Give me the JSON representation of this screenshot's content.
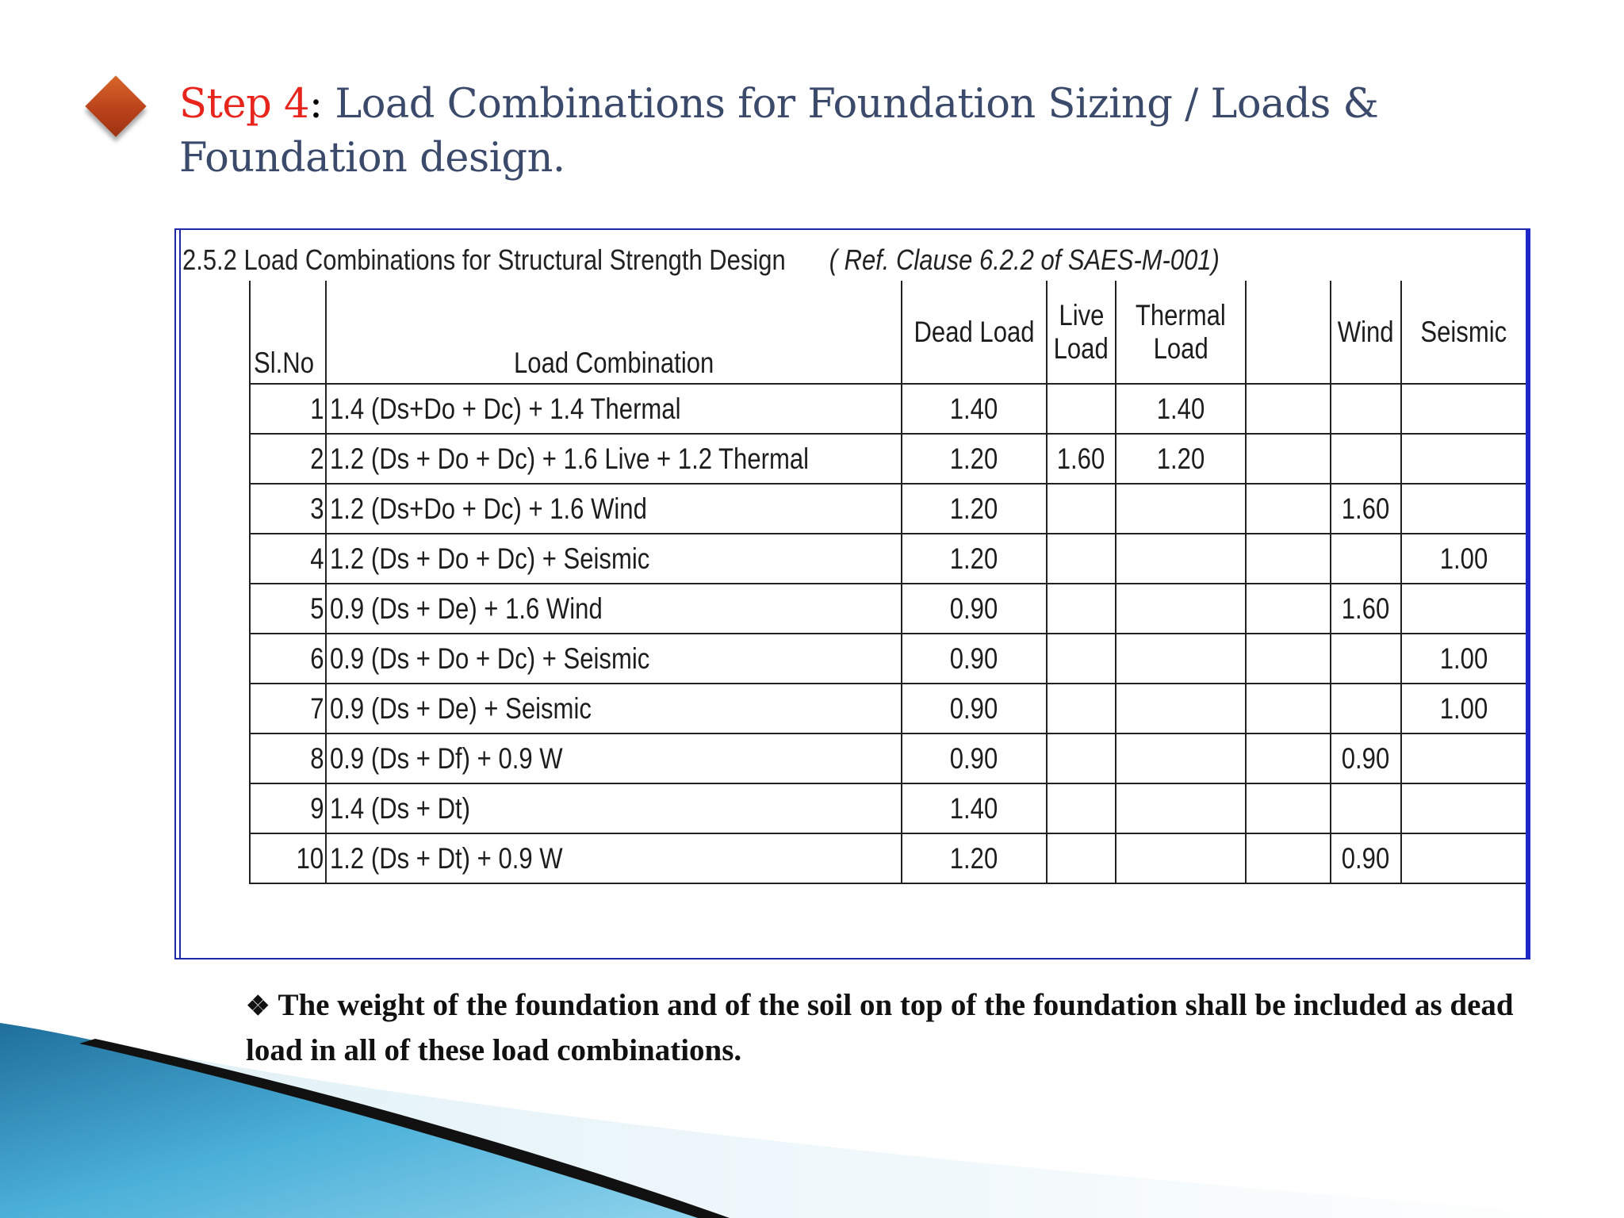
{
  "slide": {
    "title_step": "Step 4",
    "title_colon": ":",
    "title_text": " Load Combinations for Foundation Sizing / Loads & Foundation design."
  },
  "panel": {
    "heading": "2.5.2 Load Combinations for Structural Strength Design",
    "reference": "( Ref. Clause 6.2.2 of SAES-M-001)"
  },
  "table": {
    "headers": {
      "sl_no": "Sl.No",
      "combination": "Load Combination",
      "dead": "Dead Load",
      "live": [
        "Live",
        "Load"
      ],
      "thermal": [
        "Thermal",
        "Load"
      ],
      "blank": "",
      "wind": "Wind",
      "seismic": "Seismic"
    },
    "rows": [
      {
        "sl": "1",
        "combination": "1.4 (Ds+Do + Dc) + 1.4 Thermal",
        "dead": "1.40",
        "live": "",
        "thermal": "1.40",
        "blank": "",
        "wind": "",
        "seismic": ""
      },
      {
        "sl": "2",
        "combination": "1.2 (Ds + Do + Dc) + 1.6 Live + 1.2 Thermal",
        "dead": "1.20",
        "live": "1.60",
        "thermal": "1.20",
        "blank": "",
        "wind": "",
        "seismic": ""
      },
      {
        "sl": "3",
        "combination": "1.2 (Ds+Do + Dc) + 1.6 Wind",
        "dead": "1.20",
        "live": "",
        "thermal": "",
        "blank": "",
        "wind": "1.60",
        "seismic": ""
      },
      {
        "sl": "4",
        "combination": "1.2 (Ds + Do + Dc) + Seismic",
        "dead": "1.20",
        "live": "",
        "thermal": "",
        "blank": "",
        "wind": "",
        "seismic": "1.00"
      },
      {
        "sl": "5",
        "combination": "0.9 (Ds + De) + 1.6 Wind",
        "dead": "0.90",
        "live": "",
        "thermal": "",
        "blank": "",
        "wind": "1.60",
        "seismic": ""
      },
      {
        "sl": "6",
        "combination": "0.9 (Ds + Do + Dc) + Seismic",
        "dead": "0.90",
        "live": "",
        "thermal": "",
        "blank": "",
        "wind": "",
        "seismic": "1.00"
      },
      {
        "sl": "7",
        "combination": "0.9 (Ds + De) + Seismic",
        "dead": "0.90",
        "live": "",
        "thermal": "",
        "blank": "",
        "wind": "",
        "seismic": "1.00"
      },
      {
        "sl": "8",
        "combination": "0.9 (Ds + Df) + 0.9 W",
        "dead": "0.90",
        "live": "",
        "thermal": "",
        "blank": "",
        "wind": "0.90",
        "seismic": ""
      },
      {
        "sl": "9",
        "combination": "1.4 (Ds + Dt)",
        "dead": "1.40",
        "live": "",
        "thermal": "",
        "blank": "",
        "wind": "",
        "seismic": ""
      },
      {
        "sl": "10",
        "combination": "1.2 (Ds + Dt) + 0.9 W",
        "dead": "1.20",
        "live": "",
        "thermal": "",
        "blank": "",
        "wind": "0.90",
        "seismic": ""
      }
    ]
  },
  "note": {
    "icon": "diamond-bullet-icon",
    "text": "The weight of the foundation and of the soil on top of the foundation shall be included as dead load in all of these load combinations."
  },
  "colors": {
    "title_accent": "#e8251c",
    "title_text": "#3b4a6b",
    "panel_border": "#1e28a8",
    "swoosh_blue": "#3aa0cc"
  }
}
